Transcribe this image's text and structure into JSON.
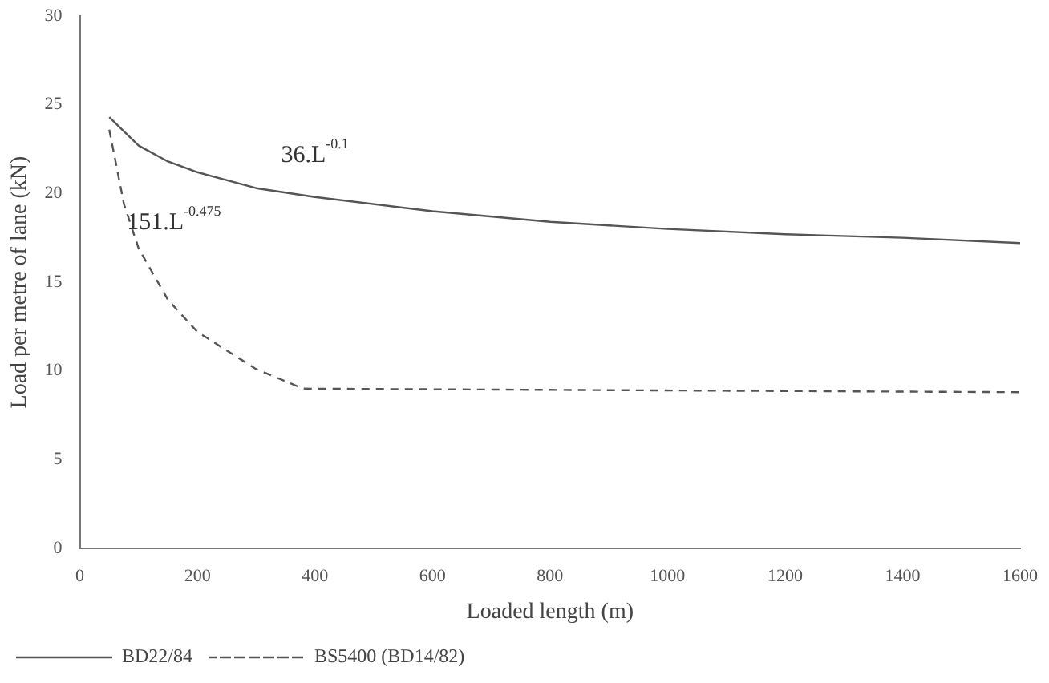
{
  "chart_data": {
    "type": "line",
    "xlabel": "Loaded length (m)",
    "ylabel": "Load per metre of lane (kN)",
    "xlim": [
      0,
      1600
    ],
    "xticks": [
      0,
      200,
      400,
      600,
      800,
      1000,
      1200,
      1400,
      1600
    ],
    "ylim": [
      0,
      30
    ],
    "yticks": [
      0,
      5,
      10,
      15,
      20,
      25,
      30
    ],
    "grid": false,
    "legend": "bottom left",
    "marker": "none",
    "series": [
      {
        "name": "BD22/84",
        "color": "#555555",
        "line_style": "solid",
        "x": [
          50,
          100,
          150,
          200,
          300,
          400,
          600,
          800,
          1000,
          1200,
          1400,
          1600
        ],
        "values": [
          24.3,
          22.7,
          21.8,
          21.2,
          20.3,
          19.8,
          19.0,
          18.4,
          18.0,
          17.7,
          17.5,
          17.2
        ]
      },
      {
        "name": "BS5400 (BD14/82)",
        "color": "#555555",
        "line_style": "dashed",
        "x": [
          50,
          75,
          100,
          150,
          200,
          300,
          380,
          1600
        ],
        "values": [
          23.6,
          19.4,
          16.9,
          14.0,
          12.2,
          10.1,
          9.0,
          8.8
        ]
      }
    ],
    "annotations": [
      "36.L$^{-0.1}$",
      "151.L$^{-0.475}$"
    ]
  }
}
